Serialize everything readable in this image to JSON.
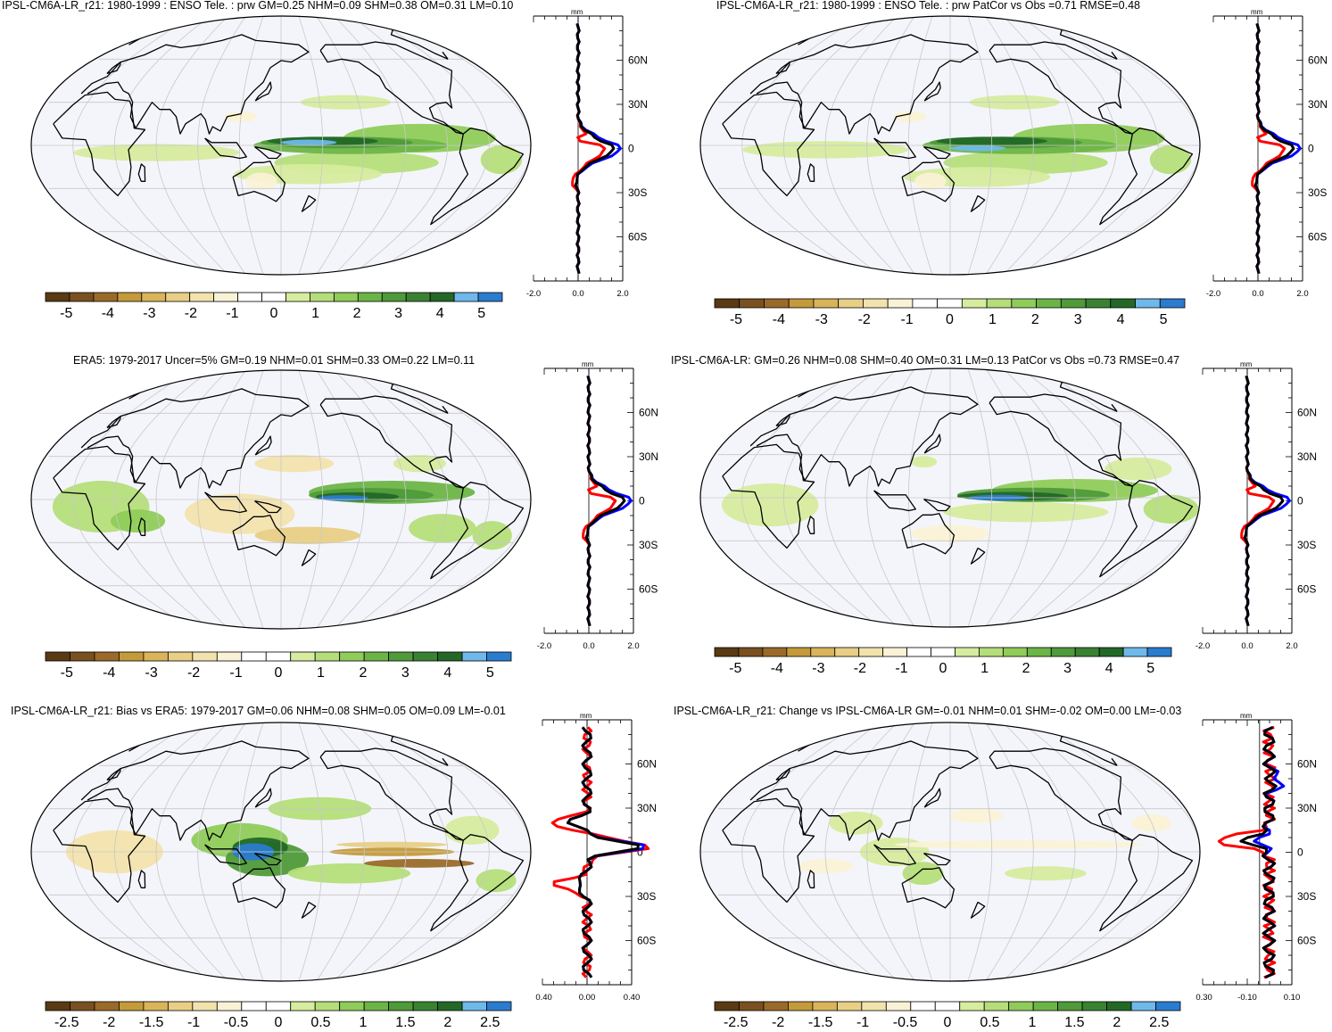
{
  "colors": {
    "map_background": "#f4f5fb",
    "land_outline": "#000000",
    "grid": "#c8c8c8",
    "model_line": "#ff0000",
    "obs_line": "#0000ff",
    "mean_line": "#000000"
  },
  "colorbar_palette": [
    "#5a3a12",
    "#7a5020",
    "#9a6a2a",
    "#c49a3a",
    "#d9b45a",
    "#e8cf85",
    "#f2e3ad",
    "#faf2d6",
    "#ffffff",
    "#ffffff",
    "#d6ec9e",
    "#b5de7a",
    "#8fcc5a",
    "#6bb547",
    "#4f9a3a",
    "#3a8232",
    "#236827",
    "#6fb8ea",
    "#2a7ccf"
  ],
  "panels": [
    {
      "id": "p1",
      "title": "IPSL-CM6A-LR_r21: 1980-1999 : ENSO Tele. : prw GM=0.25 NHM=0.09 SHM=0.38 OM=0.31 LM=0.10",
      "colorbar_labels": [
        "-5",
        "-4",
        "-3",
        "-2",
        "-1",
        "0",
        "1",
        "2",
        "3",
        "4",
        "5"
      ],
      "profile": {
        "unit": "mm",
        "lat_labels": [
          "60N",
          "30N",
          "0",
          "30S",
          "60S"
        ],
        "x_labels": [
          "-2.0",
          "0.0",
          "2.0"
        ]
      }
    },
    {
      "id": "p2",
      "title": "IPSL-CM6A-LR_r21: 1980-1999 : ENSO Tele. : prw PatCor vs Obs =0.71 RMSE=0.48",
      "colorbar_labels": [
        "-5",
        "-4",
        "-3",
        "-2",
        "-1",
        "0",
        "1",
        "2",
        "3",
        "4",
        "5"
      ],
      "profile": {
        "unit": "mm",
        "lat_labels": [
          "60N",
          "30N",
          "0",
          "30S",
          "60S"
        ],
        "x_labels": [
          "-2.0",
          "0.0",
          "2.0"
        ]
      }
    },
    {
      "id": "p3",
      "title": "ERA5: 1979-2017 Uncer=5% GM=0.19 NHM=0.01 SHM=0.33 OM=0.22 LM=0.11",
      "colorbar_labels": [
        "-5",
        "-4",
        "-3",
        "-2",
        "-1",
        "0",
        "1",
        "2",
        "3",
        "4",
        "5"
      ],
      "profile": {
        "unit": "mm",
        "lat_labels": [
          "60N",
          "30N",
          "0",
          "30S",
          "60S"
        ],
        "x_labels": [
          "-2.0",
          "0.0",
          "2.0"
        ]
      }
    },
    {
      "id": "p4",
      "title": "IPSL-CM6A-LR: GM=0.26 NHM=0.08 SHM=0.40 OM=0.31 LM=0.13 PatCor vs Obs =0.73 RMSE=0.47",
      "colorbar_labels": [
        "-5",
        "-4",
        "-3",
        "-2",
        "-1",
        "0",
        "1",
        "2",
        "3",
        "4",
        "5"
      ],
      "profile": {
        "unit": "mm",
        "lat_labels": [
          "60N",
          "30N",
          "0",
          "30S",
          "60S"
        ],
        "x_labels": [
          "-2.0",
          "0.0",
          "2.0"
        ]
      }
    },
    {
      "id": "p5",
      "title": "IPSL-CM6A-LR_r21: Bias vs ERA5: 1979-2017 GM=0.06 NHM=0.08 SHM=0.05 OM=0.09 LM=-0.01",
      "colorbar_labels": [
        "-2.5",
        "-2",
        "-1.5",
        "-1",
        "-0.5",
        "0",
        "0.5",
        "1",
        "1.5",
        "2",
        "2.5"
      ],
      "profile": {
        "unit": "mm",
        "lat_labels": [
          "60N",
          "30N",
          "0",
          "30S",
          "60S"
        ],
        "x_labels": [
          "-0.40",
          "0.00",
          "0.40"
        ]
      }
    },
    {
      "id": "p6",
      "title": "IPSL-CM6A-LR_r21: Change vs IPSL-CM6A-LR GM=-0.01 NHM=0.01 SHM=-0.02 OM=0.00 LM=-0.03",
      "colorbar_labels": [
        "-2.5",
        "-2",
        "-1.5",
        "-1",
        "-0.5",
        "0",
        "0.5",
        "1",
        "1.5",
        "2",
        "2.5"
      ],
      "profile": {
        "unit": "mm",
        "lat_labels": [
          "60N",
          "30N",
          "0",
          "30S",
          "60S"
        ],
        "x_labels": [
          "-0.30",
          "-0.10",
          "0.10"
        ]
      }
    }
  ]
}
